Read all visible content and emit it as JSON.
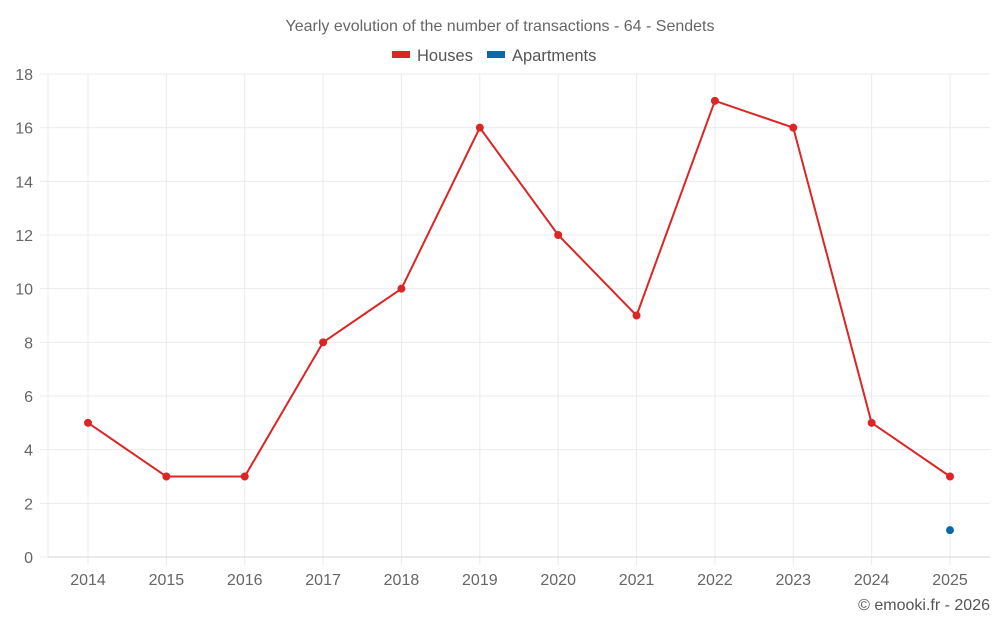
{
  "chart_data": {
    "type": "line",
    "title": "Yearly evolution of the number of transactions - 64 - Sendets",
    "xlabel": "",
    "ylabel": "",
    "x": [
      "2014",
      "2015",
      "2016",
      "2017",
      "2018",
      "2019",
      "2020",
      "2021",
      "2022",
      "2023",
      "2024",
      "2025"
    ],
    "ylim": [
      0,
      18
    ],
    "yticks": [
      0,
      2,
      4,
      6,
      8,
      10,
      12,
      14,
      16,
      18
    ],
    "grid": true,
    "legend_position": "top-center",
    "series": [
      {
        "name": "Houses",
        "color": "#dc2626",
        "values": [
          5,
          3,
          3,
          8,
          10,
          16,
          12,
          9,
          17,
          16,
          5,
          3
        ]
      },
      {
        "name": "Apartments",
        "color": "#0868a8",
        "values": [
          null,
          null,
          null,
          null,
          null,
          null,
          null,
          null,
          null,
          null,
          null,
          1
        ]
      }
    ],
    "credit": "© emooki.fr - 2026"
  }
}
